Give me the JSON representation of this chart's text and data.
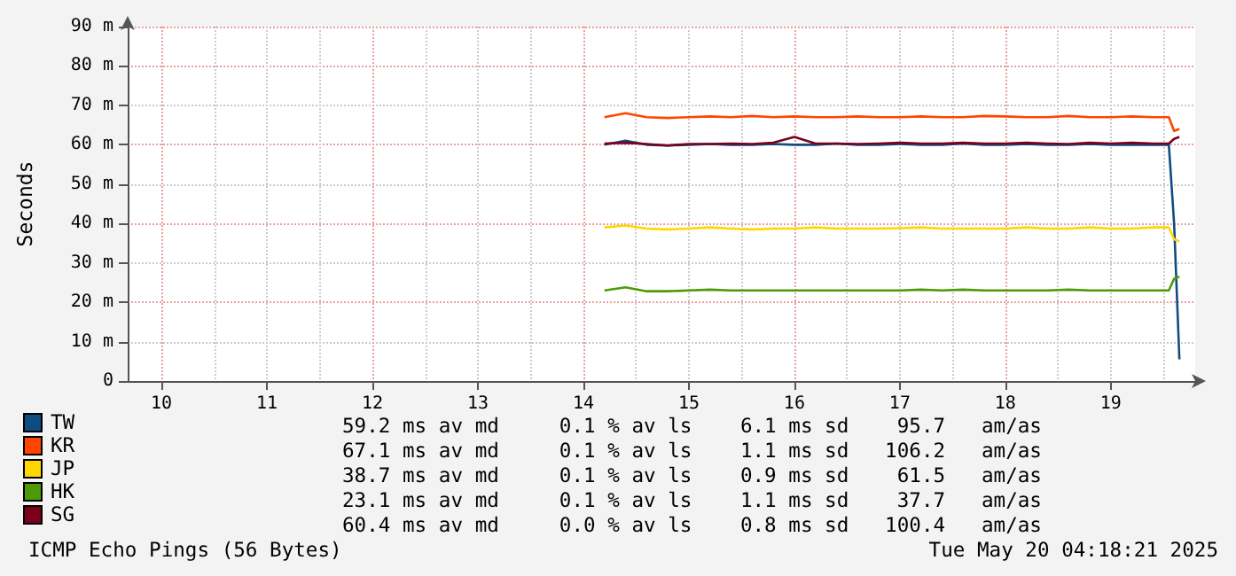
{
  "chart_data": {
    "type": "line",
    "ylabel": "Seconds",
    "x": [
      14.2,
      14.4,
      14.6,
      14.8,
      15.0,
      15.2,
      15.4,
      15.6,
      15.8,
      16.0,
      16.2,
      16.4,
      16.6,
      16.8,
      17.0,
      17.2,
      17.4,
      17.6,
      17.8,
      18.0,
      18.2,
      18.4,
      18.6,
      18.8,
      19.0,
      19.2,
      19.4,
      19.55,
      19.6,
      19.65
    ],
    "series": [
      {
        "name": "TW",
        "color": "#0f4c81",
        "values": [
          60,
          61,
          60,
          59.8,
          60,
          60.2,
          60,
          60,
          60.2,
          60,
          60,
          60.3,
          60,
          60,
          60.2,
          60,
          60,
          60.3,
          60,
          60,
          60.2,
          60,
          60,
          60.2,
          60,
          60,
          60,
          60,
          40,
          5.5
        ]
      },
      {
        "name": "KR",
        "color": "#ff4500",
        "values": [
          67,
          68,
          67,
          66.8,
          67,
          67.2,
          67,
          67.3,
          67,
          67.2,
          67,
          67,
          67.2,
          67,
          67,
          67.2,
          67,
          67,
          67.3,
          67.2,
          67,
          67,
          67.3,
          67,
          67,
          67.2,
          67,
          67,
          63.5,
          64
        ]
      },
      {
        "name": "JP",
        "color": "#ffd700",
        "values": [
          39,
          39.5,
          38.7,
          38.5,
          38.7,
          39,
          38.7,
          38.5,
          38.7,
          38.7,
          39,
          38.7,
          38.7,
          38.7,
          38.8,
          39,
          38.7,
          38.7,
          38.7,
          38.7,
          39,
          38.7,
          38.7,
          39,
          38.7,
          38.7,
          39,
          39,
          36,
          35.5
        ]
      },
      {
        "name": "HK",
        "color": "#4e9a06",
        "values": [
          23,
          23.8,
          22.8,
          22.8,
          23,
          23.2,
          23,
          23,
          23,
          23,
          23,
          23,
          23,
          23,
          23,
          23.2,
          23,
          23.2,
          23,
          23,
          23,
          23,
          23.2,
          23,
          23,
          23,
          23,
          23,
          26,
          26.5
        ]
      },
      {
        "name": "SG",
        "color": "#7b001c",
        "values": [
          60.3,
          60.5,
          60.2,
          59.8,
          60.2,
          60.2,
          60.3,
          60.2,
          60.5,
          62,
          60.3,
          60.3,
          60.2,
          60.3,
          60.5,
          60.3,
          60.3,
          60.5,
          60.3,
          60.3,
          60.5,
          60.3,
          60.2,
          60.5,
          60.3,
          60.5,
          60.3,
          60.3,
          61.5,
          62
        ]
      }
    ],
    "xlim": [
      9.68,
      19.8
    ],
    "xticks": [
      10,
      11,
      12,
      13,
      14,
      15,
      16,
      17,
      18,
      19
    ],
    "ylim": [
      0,
      90
    ],
    "yticks": [
      0,
      {
        "value": 10,
        "label": "10 m"
      },
      {
        "value": 20,
        "label": "20 m"
      },
      {
        "value": 30,
        "label": "30 m"
      },
      {
        "value": 40,
        "label": "40 m"
      },
      {
        "value": 50,
        "label": "50 m"
      },
      {
        "value": 60,
        "label": "60 m"
      },
      {
        "value": 70,
        "label": "70 m"
      },
      {
        "value": 80,
        "label": "80 m"
      },
      {
        "value": 90,
        "label": "90 m"
      }
    ],
    "grid": true,
    "legend": "bottom left",
    "marker": "none",
    "line_style": "solid",
    "annotations": [
      "59.2 ms av md     0.1 % av ls    6.1 ms sd    95.7   am/as",
      "67.1 ms av md     0.1 % av ls    1.1 ms sd   106.2   am/as",
      "38.7 ms av md     0.1 % av ls    0.9 ms sd    61.5   am/as",
      "23.1 ms av md     0.1 % av ls    1.1 ms sd    37.7   am/as",
      "60.4 ms av md     0.0 % av ls    0.8 ms sd   100.4   am/as",
      "ICMP Echo Pings (56 Bytes)",
      "Tue May 20 04:18:21 2025"
    ]
  }
}
